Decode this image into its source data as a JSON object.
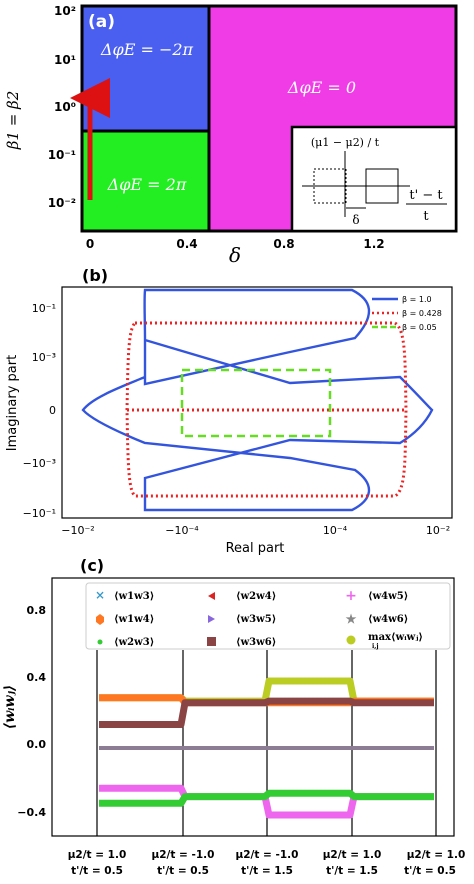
{
  "panel_a": {
    "panel_label": "(a)",
    "ylabel": "β1 = β2",
    "xlabel": "δ",
    "xticks": [
      "0",
      "0.4",
      "0.8",
      "1.2"
    ],
    "yticks": [
      "10²",
      "10¹",
      "10⁰",
      "10⁻¹",
      "10⁻²"
    ],
    "regions": [
      {
        "label": "ΔφE = −2π",
        "color": "#4a5ff0"
      },
      {
        "label": "ΔφE = 2π",
        "color": "#22ee22"
      },
      {
        "label": "ΔφE = 0",
        "color": "#f03ce6"
      }
    ],
    "inset": {
      "ylabel": "(μ1 − μ2) / t",
      "delta_label": "δ",
      "ratio_num": "t' − t",
      "ratio_den": "t"
    },
    "arrow_color": "#dd1111"
  },
  "panel_b": {
    "panel_label": "(b)",
    "xlabel": "Real part",
    "ylabel": "Imaginary part",
    "xticks": [
      "−10⁻²",
      "−10⁻⁴",
      "10⁻⁴",
      "10⁻²"
    ],
    "yticks": [
      "10⁻¹",
      "10⁻³",
      "0",
      "−10⁻³",
      "−10⁻¹"
    ],
    "legend": [
      {
        "label": "β = 1.0",
        "color": "#3355dd",
        "style": "solid"
      },
      {
        "label": "β = 0.428",
        "color": "#ee2222",
        "style": "dotted"
      },
      {
        "label": "β = 0.05",
        "color": "#66dd22",
        "style": "dashed"
      }
    ]
  },
  "panel_c": {
    "panel_label": "(c)",
    "ylabel": "⟨wᵢwⱼ⟩",
    "yticks": [
      "0.8",
      "0.4",
      "0.0",
      "−0.4"
    ],
    "legend": [
      {
        "label": "⟨w1w3⟩",
        "marker": "x",
        "color": "#3399cc"
      },
      {
        "label": "⟨w2w4⟩",
        "marker": "tri-left",
        "color": "#dd2222"
      },
      {
        "label": "⟨w4w5⟩",
        "marker": "plus",
        "color": "#ee66ee"
      },
      {
        "label": "⟨w1w4⟩",
        "marker": "hexagon",
        "color": "#ff7722"
      },
      {
        "label": "⟨w3w5⟩",
        "marker": "tri-right",
        "color": "#8866dd"
      },
      {
        "label": "⟨w4w6⟩",
        "marker": "star",
        "color": "#888888"
      },
      {
        "label": "⟨w2w3⟩",
        "marker": "dot",
        "color": "#33cc33"
      },
      {
        "label": "⟨w3w6⟩",
        "marker": "square",
        "color": "#8b4444"
      },
      {
        "label": "max⟨wᵢwⱼ⟩",
        "sublabel": "i,j",
        "marker": "circle",
        "color": "#bbcc22"
      }
    ],
    "segment_labels": [
      {
        "mu": "μ2/t = 1.0",
        "tp": "t'/t = 0.5"
      },
      {
        "mu": "μ2/t = -1.0",
        "tp": "t'/t = 0.5"
      },
      {
        "mu": "μ2/t = -1.0",
        "tp": "t'/t = 1.5"
      },
      {
        "mu": "μ2/t = 1.0",
        "tp": "t'/t = 1.5"
      },
      {
        "mu": "μ2/t = 1.0",
        "tp": "t'/t = 0.5"
      }
    ]
  },
  "chart_data": [
    {
      "type": "heatmap",
      "xlabel": "δ",
      "ylabel": "β1 = β2",
      "x_ticks": [
        0,
        0.4,
        0.8,
        1.2
      ],
      "y_scale": "log",
      "y_ticks": [
        0.01,
        0.1,
        1,
        10,
        100
      ],
      "regions": [
        {
          "label": "ΔφE = −2π",
          "delta_range": [
            0,
            0.5
          ],
          "beta_range": [
            0.4,
            100
          ]
        },
        {
          "label": "ΔφE = 2π",
          "delta_range": [
            0,
            0.5
          ],
          "beta_range": [
            0.004,
            0.4
          ]
        },
        {
          "label": "ΔφE = 0",
          "delta_range": [
            0.5,
            1.5
          ],
          "beta_range": [
            0.004,
            100
          ]
        }
      ]
    },
    {
      "type": "line",
      "xlabel": "Real part",
      "ylabel": "Imaginary part",
      "x_scale": "symlog",
      "y_scale": "symlog",
      "x_ticks": [
        -0.01,
        -0.0001,
        0.0001,
        0.01
      ],
      "y_ticks": [
        0.1,
        0.001,
        0,
        -0.001,
        -0.1
      ],
      "series": [
        {
          "name": "β = 1.0"
        },
        {
          "name": "β = 0.428"
        },
        {
          "name": "β = 0.05"
        }
      ]
    },
    {
      "type": "scatter",
      "ylabel": "⟨wᵢwⱼ⟩",
      "y_ticks": [
        0.8,
        0.4,
        0.0,
        -0.4
      ],
      "segments": 4,
      "series": [
        {
          "name": "max⟨wᵢwⱼ⟩",
          "values": [
            0.3,
            0.28,
            0.4,
            0.28
          ]
        },
        {
          "name": "⟨w1w4⟩",
          "values": [
            0.3,
            0.27,
            0.27,
            0.28
          ]
        },
        {
          "name": "⟨w3w6⟩",
          "values": [
            0.14,
            0.27,
            0.28,
            0.27
          ]
        },
        {
          "name": "⟨w4w5⟩",
          "values": [
            -0.24,
            -0.29,
            -0.4,
            -0.29
          ]
        },
        {
          "name": "⟨w2w3⟩",
          "values": [
            -0.33,
            -0.29,
            -0.27,
            -0.29
          ]
        },
        {
          "name": "⟨w1w3⟩",
          "values": [
            0.0,
            0.0,
            0.0,
            0.0
          ]
        },
        {
          "name": "⟨w2w4⟩",
          "values": [
            0.0,
            0.0,
            0.0,
            0.0
          ]
        },
        {
          "name": "⟨w3w5⟩",
          "values": [
            0.0,
            0.0,
            0.0,
            0.0
          ]
        },
        {
          "name": "⟨w4w6⟩",
          "values": [
            0.0,
            0.0,
            0.0,
            0.0
          ]
        }
      ]
    }
  ]
}
